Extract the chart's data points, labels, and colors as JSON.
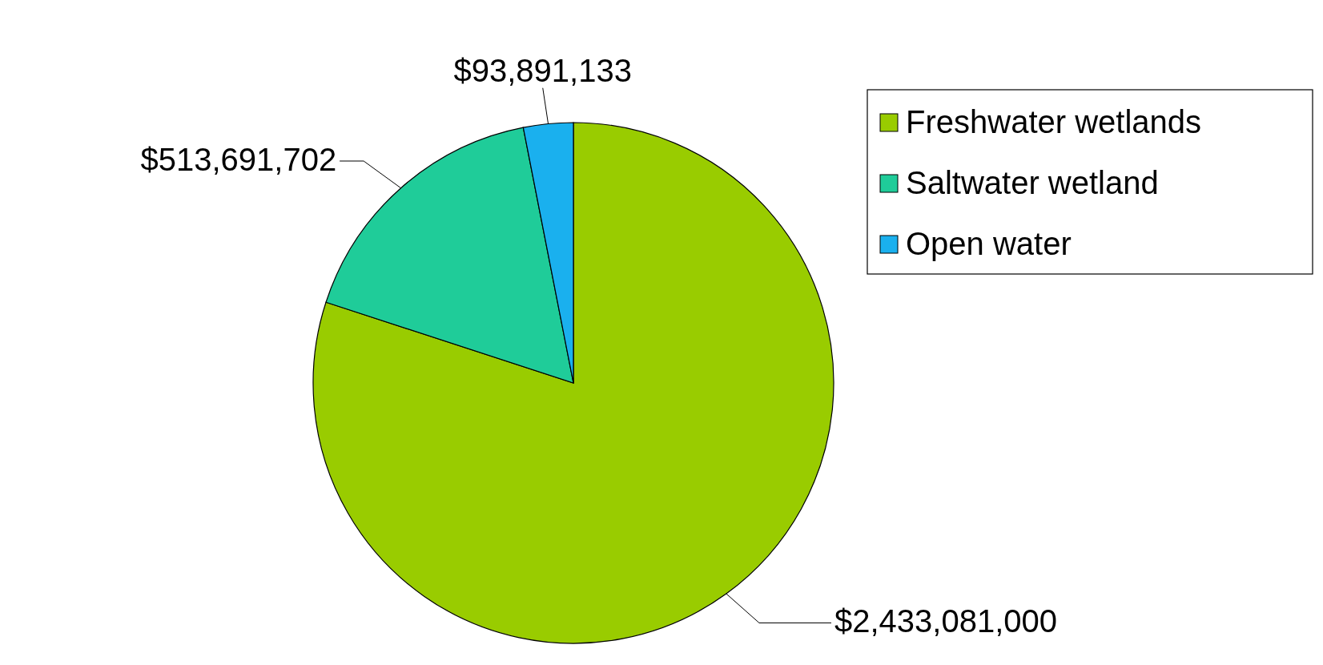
{
  "chart_data": {
    "type": "pie",
    "categories": [
      "Freshwater wetlands",
      "Saltwater wetland",
      "Open water"
    ],
    "values": [
      2433081000,
      513691702,
      93891133
    ],
    "colors": [
      "#99cc00",
      "#1fcc99",
      "#1ab0ee"
    ],
    "value_labels": [
      "$2,433,081,000",
      "$513,691,702",
      "$93,891,133"
    ],
    "legend": "top right"
  }
}
